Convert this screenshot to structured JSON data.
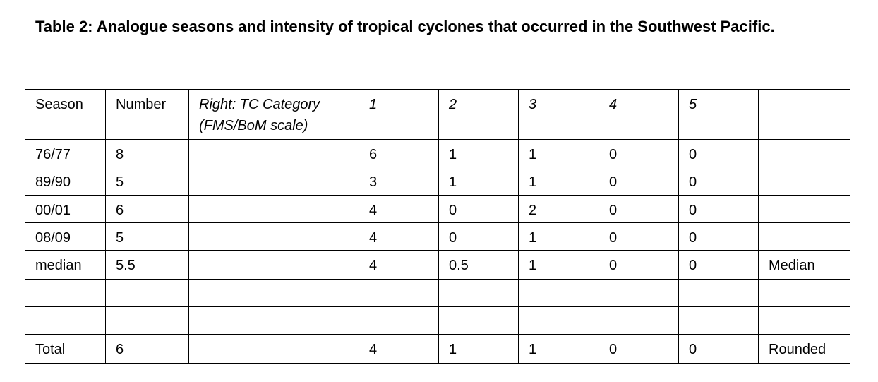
{
  "title": "Table 2: Analogue seasons and intensity of tropical cyclones that occurred in the Southwest Pacific.",
  "table": {
    "header": [
      "Season",
      "Number",
      "Right: TC Category (FMS/BoM scale)",
      "1",
      "2",
      "3",
      "4",
      "5",
      null
    ],
    "rows": [
      [
        "76/77",
        "8",
        null,
        "6",
        "1",
        "1",
        "0",
        "0",
        null
      ],
      [
        "89/90",
        "5",
        null,
        "3",
        "1",
        "1",
        "0",
        "0",
        null
      ],
      [
        "00/01",
        "6",
        null,
        "4",
        "0",
        "2",
        "0",
        "0",
        null
      ],
      [
        "08/09",
        "5",
        null,
        "4",
        "0",
        "1",
        "0",
        "0",
        null
      ],
      [
        "median",
        "5.5",
        null,
        "4",
        "0.5",
        "1",
        "0",
        "0",
        "Median"
      ],
      [
        null,
        null,
        null,
        null,
        null,
        null,
        null,
        null,
        null
      ],
      [
        null,
        null,
        null,
        null,
        null,
        null,
        null,
        null,
        null
      ],
      [
        "Total",
        "6",
        null,
        "4",
        "1",
        "1",
        "0",
        "0",
        "Rounded"
      ]
    ]
  }
}
